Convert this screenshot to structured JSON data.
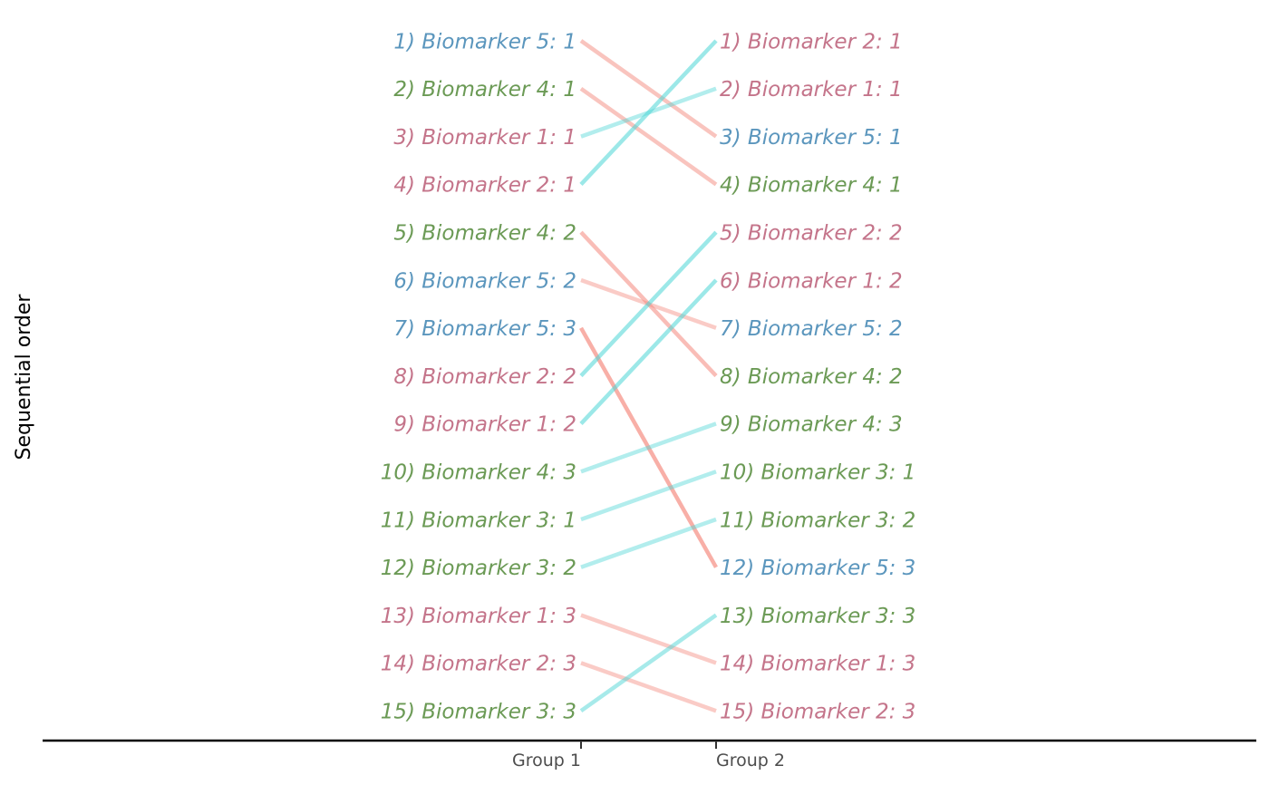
{
  "chart_data": {
    "type": "slopegraph",
    "ylabel": "Sequential order",
    "xlabel": "",
    "groups": [
      "Group 1",
      "Group 2"
    ],
    "colors": {
      "Biomarker 1": "#c4748a",
      "Biomarker 2": "#c4748a",
      "Biomarker 3": "#6b9a55",
      "Biomarker 4": "#6b9a55",
      "Biomarker 5": "#5b96bd",
      "line_up": "#4fd6d6",
      "line_down": "#f4897e"
    },
    "group1_labels": [
      "1) Biomarker 5: 1",
      "2) Biomarker 4: 1",
      "3) Biomarker 1: 1",
      "4) Biomarker 2: 1",
      "5) Biomarker 4: 2",
      "6) Biomarker 5: 2",
      "7) Biomarker 5: 3",
      "8) Biomarker 2: 2",
      "9) Biomarker 1: 2",
      "10) Biomarker 4: 3",
      "11) Biomarker 3: 1",
      "12) Biomarker 3: 2",
      "13) Biomarker 1: 3",
      "14) Biomarker 2: 3",
      "15) Biomarker 3: 3"
    ],
    "group2_labels": [
      "1) Biomarker 2: 1",
      "2) Biomarker 1: 1",
      "3) Biomarker 5: 1",
      "4) Biomarker 4: 1",
      "5) Biomarker 2: 2",
      "6) Biomarker 1: 2",
      "7) Biomarker 5: 2",
      "8) Biomarker 4: 2",
      "9) Biomarker 4: 3",
      "10) Biomarker 3: 1",
      "11) Biomarker 3: 2",
      "12) Biomarker 5: 3",
      "13) Biomarker 3: 3",
      "14) Biomarker 1: 3",
      "15) Biomarker 2: 3"
    ],
    "connections": [
      {
        "item": "Biomarker 5: 1",
        "rank_group1": 1,
        "rank_group2": 3
      },
      {
        "item": "Biomarker 4: 1",
        "rank_group1": 2,
        "rank_group2": 4
      },
      {
        "item": "Biomarker 1: 1",
        "rank_group1": 3,
        "rank_group2": 2
      },
      {
        "item": "Biomarker 2: 1",
        "rank_group1": 4,
        "rank_group2": 1
      },
      {
        "item": "Biomarker 4: 2",
        "rank_group1": 5,
        "rank_group2": 8
      },
      {
        "item": "Biomarker 5: 2",
        "rank_group1": 6,
        "rank_group2": 7
      },
      {
        "item": "Biomarker 5: 3",
        "rank_group1": 7,
        "rank_group2": 12
      },
      {
        "item": "Biomarker 2: 2",
        "rank_group1": 8,
        "rank_group2": 5
      },
      {
        "item": "Biomarker 1: 2",
        "rank_group1": 9,
        "rank_group2": 6
      },
      {
        "item": "Biomarker 4: 3",
        "rank_group1": 10,
        "rank_group2": 9
      },
      {
        "item": "Biomarker 3: 1",
        "rank_group1": 11,
        "rank_group2": 10
      },
      {
        "item": "Biomarker 3: 2",
        "rank_group1": 12,
        "rank_group2": 11
      },
      {
        "item": "Biomarker 1: 3",
        "rank_group1": 13,
        "rank_group2": 14
      },
      {
        "item": "Biomarker 2: 3",
        "rank_group1": 14,
        "rank_group2": 15
      },
      {
        "item": "Biomarker 3: 3",
        "rank_group1": 15,
        "rank_group2": 13
      }
    ]
  }
}
